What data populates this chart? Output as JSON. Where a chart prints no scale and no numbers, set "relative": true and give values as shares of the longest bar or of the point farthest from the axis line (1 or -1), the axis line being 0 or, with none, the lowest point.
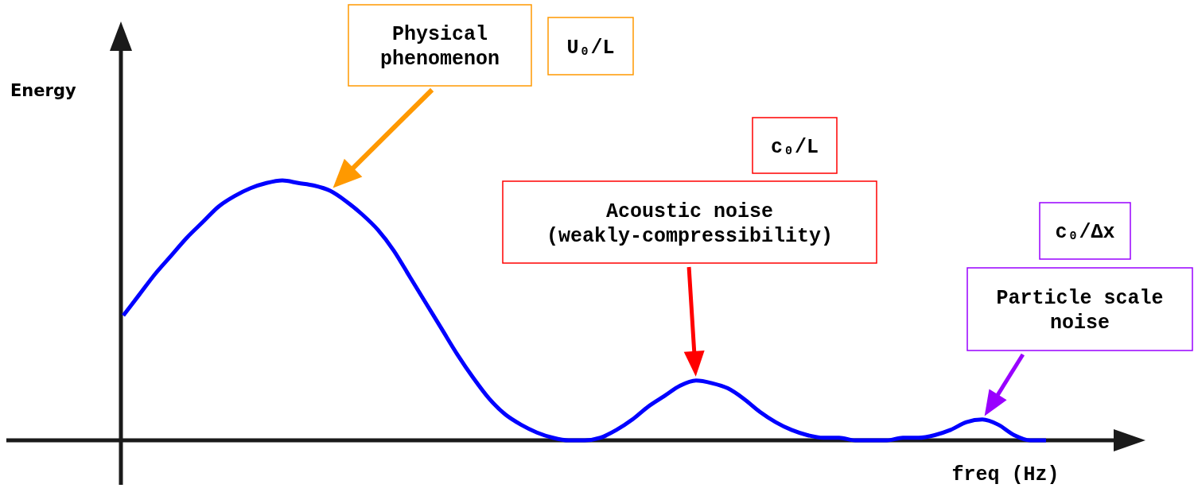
{
  "chart_data": {
    "type": "line",
    "relative": true,
    "xlabel": "freq (Hz)",
    "categories": [
      null,
      null,
      null,
      null,
      null,
      null,
      null,
      null,
      null,
      null,
      null,
      null,
      null,
      null,
      null,
      null,
      null,
      null,
      null,
      null,
      null,
      null,
      null,
      null,
      null,
      null,
      null,
      null,
      null,
      null,
      null,
      null,
      null,
      null,
      null,
      null,
      null,
      null,
      null,
      null,
      null,
      null,
      null,
      null,
      null,
      null,
      null,
      null,
      null,
      null,
      null,
      null,
      null,
      null,
      null,
      null,
      null,
      null,
      null
    ],
    "series": [
      {
        "color": "#0000ff",
        "values": [
          0.48,
          0.56,
          0.64,
          0.71,
          0.78,
          0.84,
          0.9,
          0.94,
          0.97,
          0.99,
          1.0,
          0.99,
          0.98,
          0.96,
          0.92,
          0.87,
          0.81,
          0.73,
          0.63,
          0.53,
          0.43,
          0.33,
          0.24,
          0.16,
          0.1,
          0.06,
          0.03,
          0.01,
          0.0,
          0.0,
          0.01,
          0.04,
          0.08,
          0.13,
          0.17,
          0.21,
          0.23,
          0.22,
          0.2,
          0.16,
          0.11,
          0.07,
          0.04,
          0.02,
          0.01,
          0.01,
          0.0,
          0.0,
          0.0,
          0.01,
          0.01,
          0.02,
          0.04,
          0.07,
          0.08,
          0.06,
          0.02,
          0.0,
          0.0
        ]
      }
    ],
    "annotations": [
      "Physical phenomenon",
      "U₀/L",
      "c₀/L",
      "Acoustic noise (weakly-compressibility)",
      "c₀/Δx",
      "Particle scale noise",
      "Energy"
    ]
  }
}
